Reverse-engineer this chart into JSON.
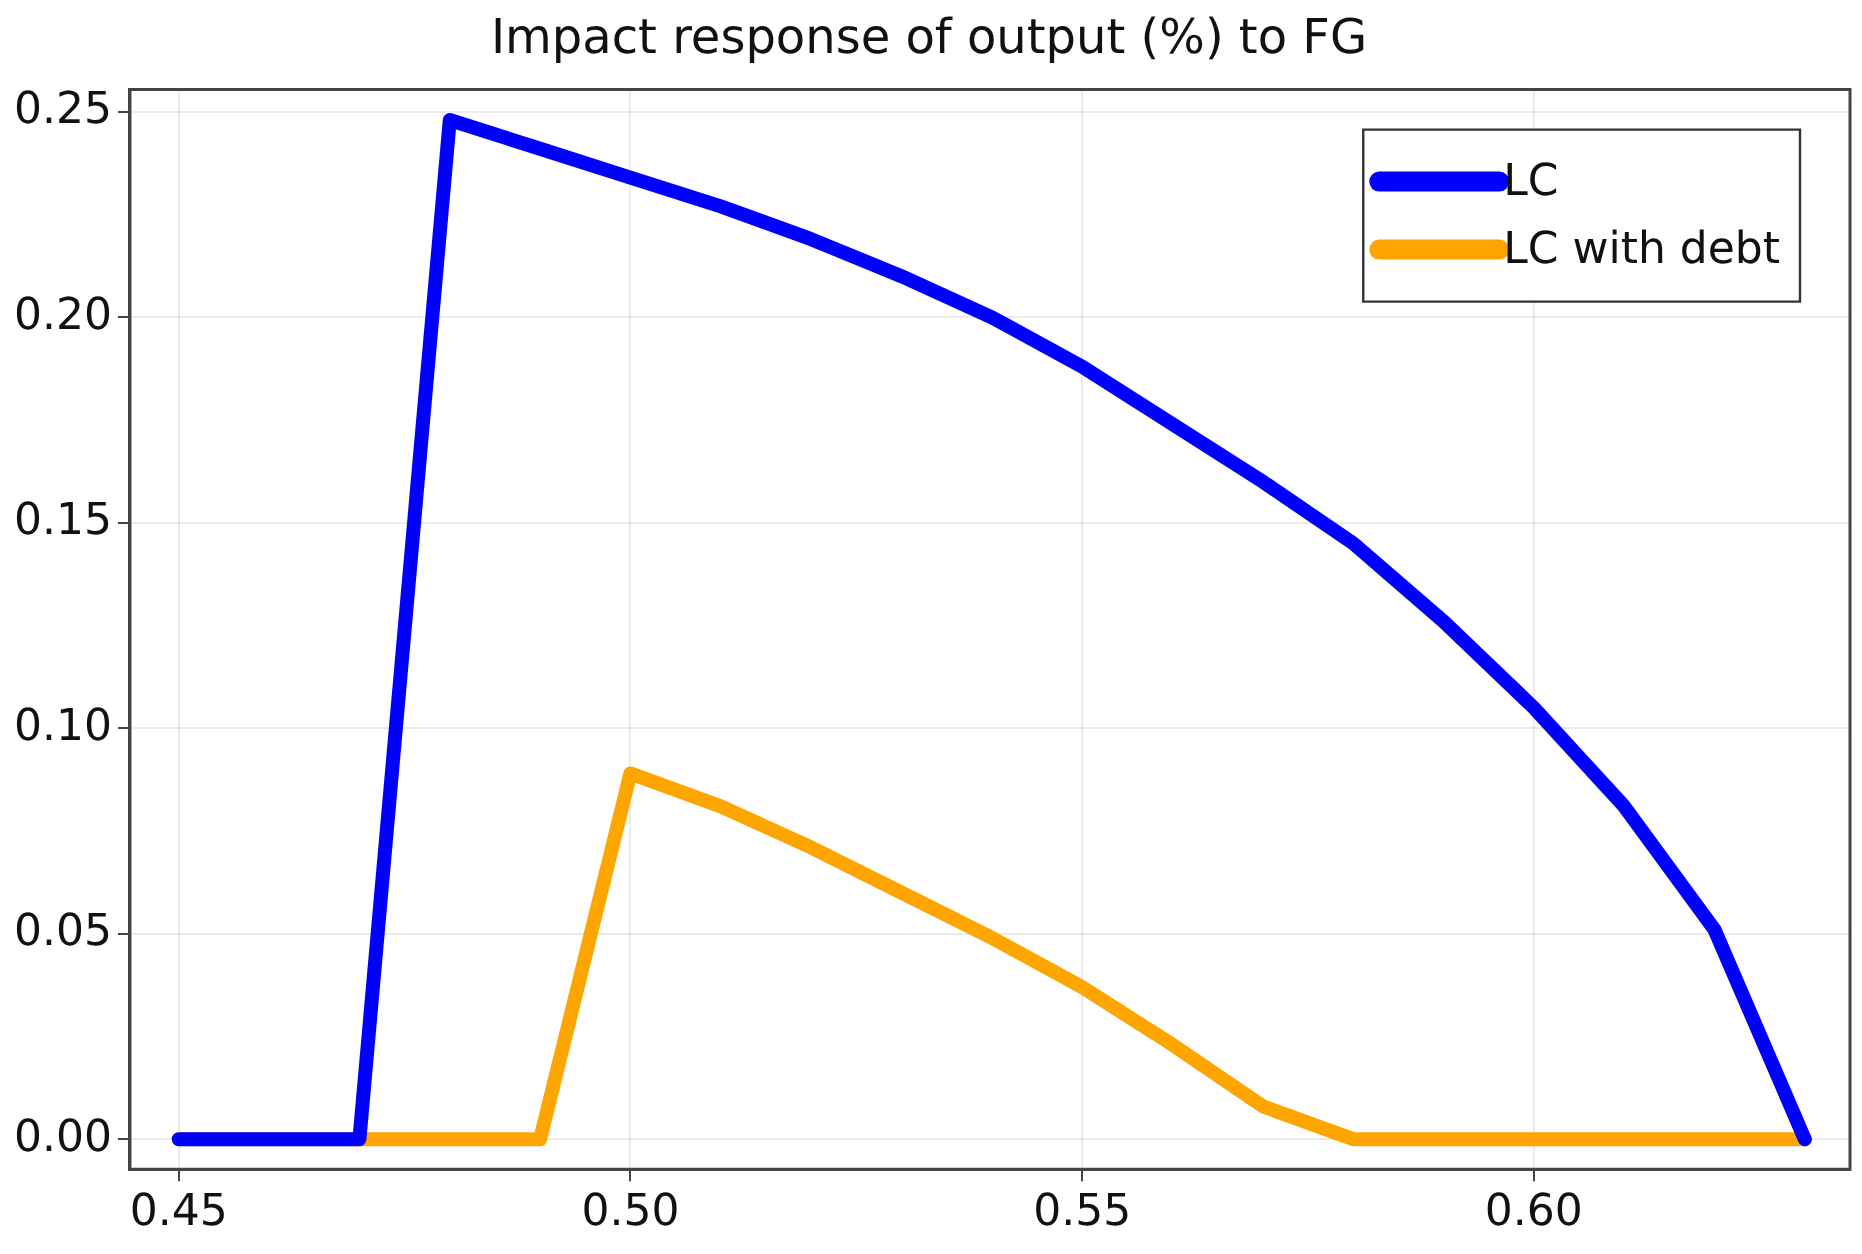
{
  "chart_data": {
    "type": "line",
    "title": "Impact response of output (%) to FG",
    "x": [
      0.45,
      0.46,
      0.47,
      0.48,
      0.49,
      0.5,
      0.51,
      0.52,
      0.53,
      0.54,
      0.55,
      0.56,
      0.57,
      0.58,
      0.59,
      0.6,
      0.61,
      0.62,
      0.63
    ],
    "series": [
      {
        "name": "LC",
        "color": "#0000ff",
        "values": [
          0,
          0,
          0,
          0.248,
          0.241,
          0.234,
          0.227,
          0.219,
          0.21,
          0.2,
          0.188,
          0.174,
          0.16,
          0.145,
          0.126,
          0.105,
          0.081,
          0.051,
          0
        ]
      },
      {
        "name": "LC with debt",
        "color": "#ffa500",
        "values": [
          0,
          0,
          0,
          0,
          0,
          0.089,
          0.081,
          0.071,
          0.06,
          0.049,
          0.037,
          0.023,
          0.008,
          0,
          0,
          0,
          0,
          0,
          0
        ]
      }
    ],
    "xlim": [
      0.4446,
      0.635
    ],
    "xticks": [
      {
        "value": 0.45,
        "label": "0.45"
      },
      {
        "value": 0.5,
        "label": "0.50"
      },
      {
        "value": 0.55,
        "label": "0.55"
      },
      {
        "value": 0.6,
        "label": "0.60"
      }
    ],
    "ylim": [
      -0.0073,
      0.2554
    ],
    "yticks": [
      {
        "value": 0,
        "label": "0.00"
      },
      {
        "value": 0.05,
        "label": "0.05"
      },
      {
        "value": 0.1,
        "label": "0.10"
      },
      {
        "value": 0.15,
        "label": "0.15"
      },
      {
        "value": 0.2,
        "label": "0.20"
      },
      {
        "value": 0.25,
        "label": "0.25"
      }
    ],
    "grid": true,
    "legend": "top right",
    "marker": "none",
    "line_style": "solid"
  }
}
